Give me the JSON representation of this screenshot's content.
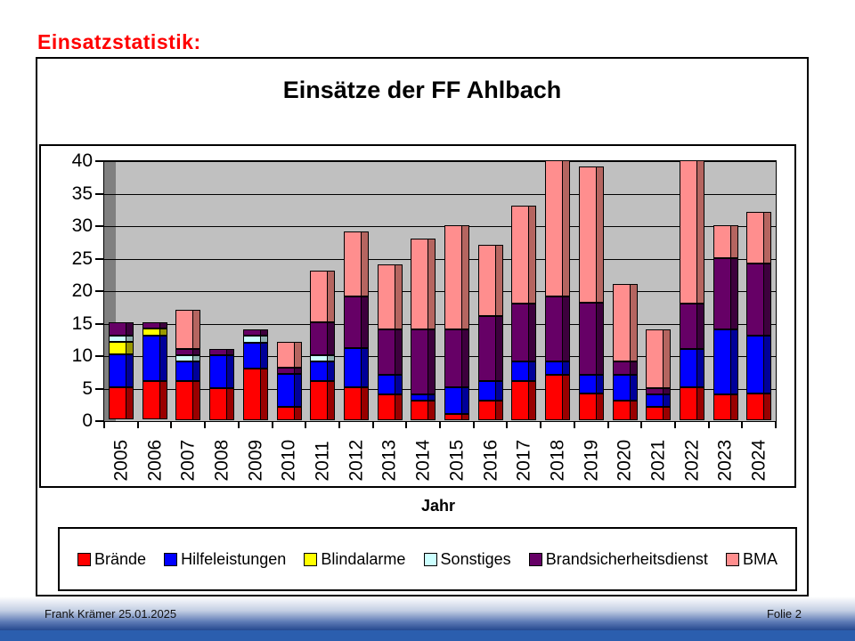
{
  "slide": {
    "heading": "Einsatzstatistik:",
    "footer_left": "Frank Krämer 25.01.2025",
    "footer_right": "Folie 2"
  },
  "chart_data": {
    "type": "bar",
    "stacked": true,
    "title": "Einsätze der FF Ahlbach",
    "xlabel": "Jahr",
    "ylabel": "",
    "ylim": [
      0,
      40
    ],
    "ytick_step": 5,
    "grid": true,
    "legend_position": "bottom",
    "plot_bg": "#c0c0c0",
    "wall_color": "#808080",
    "categories": [
      "2005",
      "2006",
      "2007",
      "2008",
      "2009",
      "2010",
      "2011",
      "2012",
      "2013",
      "2014",
      "2015",
      "2016",
      "2017",
      "2018",
      "2019",
      "2020",
      "2021",
      "2022",
      "2023",
      "2024"
    ],
    "series": [
      {
        "name": "Brände",
        "color": "#ff0000",
        "side_color": "#990000",
        "values": [
          5,
          6,
          6,
          5,
          8,
          2,
          6,
          5,
          4,
          3,
          1,
          3,
          6,
          7,
          4,
          3,
          2,
          5,
          4,
          4
        ]
      },
      {
        "name": "Hilfeleistungen",
        "color": "#0000ff",
        "side_color": "#000099",
        "values": [
          5,
          7,
          3,
          5,
          4,
          5,
          3,
          6,
          3,
          1,
          4,
          3,
          3,
          2,
          3,
          4,
          2,
          6,
          10,
          9
        ]
      },
      {
        "name": "Blindalarme",
        "color": "#ffff00",
        "side_color": "#999900",
        "values": [
          2,
          1,
          0,
          0,
          0,
          0,
          0,
          0,
          0,
          0,
          0,
          0,
          0,
          0,
          0,
          0,
          0,
          0,
          0,
          0
        ]
      },
      {
        "name": "Sonstiges",
        "color": "#ccffff",
        "side_color": "#8fafaf",
        "values": [
          1,
          0,
          1,
          0,
          1,
          0,
          1,
          0,
          0,
          0,
          0,
          0,
          0,
          0,
          0,
          0,
          0,
          0,
          0,
          0
        ]
      },
      {
        "name": "Brandsicherheitsdienst",
        "color": "#660066",
        "side_color": "#3d003d",
        "values": [
          2,
          1,
          1,
          1,
          1,
          1,
          5,
          8,
          7,
          10,
          9,
          10,
          9,
          10,
          11,
          2,
          1,
          7,
          11,
          11
        ]
      },
      {
        "name": "BMA",
        "color": "#ff8e8e",
        "side_color": "#b56560",
        "values": [
          0,
          0,
          6,
          0,
          0,
          4,
          8,
          10,
          10,
          14,
          16,
          11,
          15,
          21,
          21,
          12,
          9,
          22,
          5,
          8
        ]
      }
    ]
  }
}
